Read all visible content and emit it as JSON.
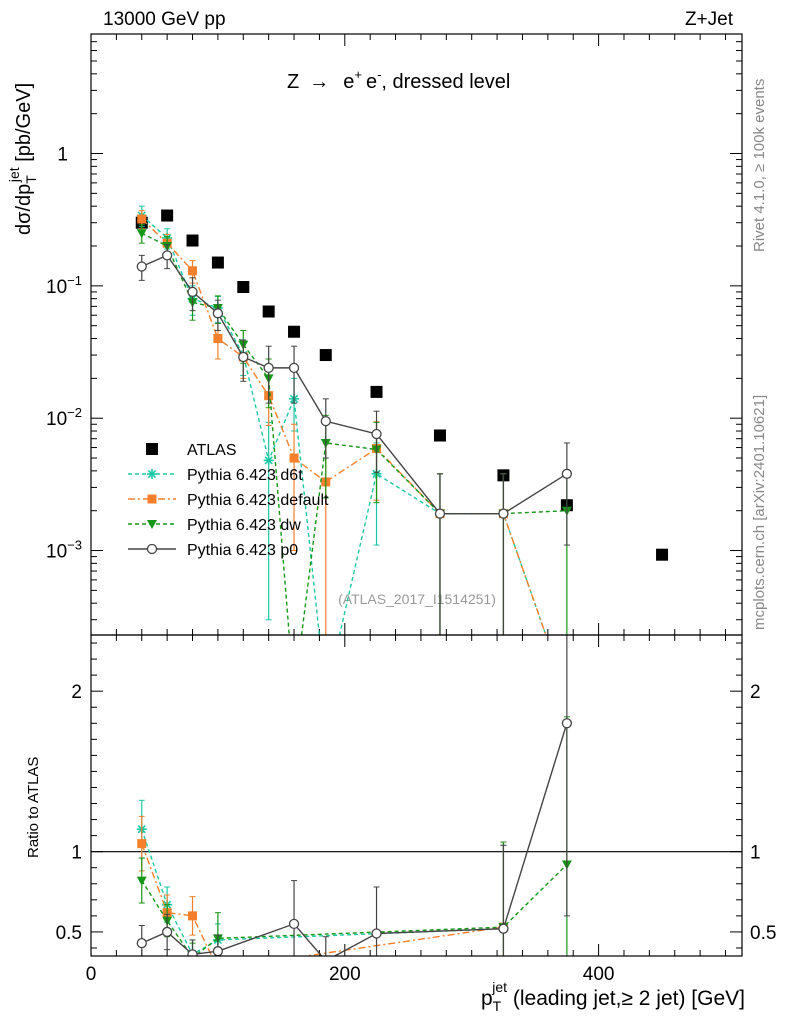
{
  "chart_data": {
    "type": "scatter",
    "header_left": "13000 GeV pp",
    "header_right": "Z+Jet",
    "process": {
      "pre": "Z",
      "arrow": "→",
      "lepton": "e",
      "post": ", dressed level"
    },
    "analysis_id": "(ATLAS_2017_I1514251)",
    "side_label_top": "Rivet 4.1.0, ≥ 100k events",
    "side_label_bottom": "mcplots.cern.ch [arXiv:2401.10621]",
    "ylabel_main": {
      "d": "dσ/dp",
      "sub": "T",
      "sup": "jet",
      "unit": " [pb/GeV]"
    },
    "ylabel_ratio": "Ratio to ATLAS",
    "xlabel": {
      "p": "p",
      "sub": "T",
      "sup": "jet",
      "rest": " (leading jet,≥ 2 jet) [GeV]"
    },
    "xlim": [
      0,
      513
    ],
    "ylim_main": [
      0.00023,
      8.0
    ],
    "ylim_ratio": [
      0.35,
      2.35
    ],
    "x_ticks": [
      "0",
      "200",
      "400"
    ],
    "y_ticks_main": [
      {
        "mantissa": "1",
        "exp": ""
      },
      {
        "mantissa": "10",
        "exp": "−1"
      },
      {
        "mantissa": "10",
        "exp": "−2"
      },
      {
        "mantissa": "10",
        "exp": "−3"
      }
    ],
    "y_ticks_ratio": [
      "2",
      "1",
      "0.5"
    ],
    "legend": [
      "ATLAS",
      "Pythia 6.423 d6t",
      "Pythia 6.423 default",
      "Pythia 6.423 dw",
      "Pythia 6.423 p0"
    ],
    "series": [
      {
        "name": "ATLAS",
        "color": "#000000",
        "x": [
          40,
          60,
          80,
          100,
          120,
          140,
          160,
          185,
          225,
          275,
          325,
          375,
          450
        ],
        "y": [
          0.3,
          0.34,
          0.22,
          0.15,
          0.098,
          0.064,
          0.045,
          0.03,
          0.0158,
          0.0074,
          0.0037,
          0.0022,
          0.00093
        ]
      },
      {
        "name": "Pythia 6.423 d6t",
        "color": "#1bc8a3",
        "x": [
          40,
          60,
          80,
          100,
          120,
          140,
          160,
          185,
          225,
          275,
          325,
          375
        ],
        "y": [
          0.34,
          0.23,
          0.08,
          0.068,
          0.03,
          0.0048,
          0.014,
          0.0,
          0.0038,
          0.0019,
          0.0019,
          0.0
        ],
        "err": [
          0.06,
          0.04,
          0.02,
          0.015,
          0.009,
          0.0045,
          0.006,
          0.0,
          0.0027,
          0.0019,
          0.0019,
          0.0
        ]
      },
      {
        "name": "Pythia 6.423 default",
        "color": "#f57f2a",
        "x": [
          40,
          60,
          80,
          100,
          120,
          140,
          160,
          185,
          225,
          275,
          325,
          375
        ],
        "y": [
          0.32,
          0.21,
          0.13,
          0.04,
          0.029,
          0.0148,
          0.005,
          0.0033,
          0.0059,
          0.0019,
          0.0019,
          0.0
        ],
        "err": [
          0.05,
          0.035,
          0.025,
          0.012,
          0.009,
          0.006,
          0.004,
          0.0031,
          0.0035,
          0.0019,
          0.0019,
          0.0
        ]
      },
      {
        "name": "Pythia 6.423 dw",
        "color": "#169616",
        "x": [
          40,
          60,
          80,
          100,
          120,
          140,
          160,
          185,
          225,
          275,
          325,
          375
        ],
        "y": [
          0.25,
          0.2,
          0.075,
          0.068,
          0.036,
          0.02,
          0.0,
          0.0065,
          0.0058,
          0.0019,
          0.0019,
          0.002
        ],
        "err": [
          0.04,
          0.035,
          0.02,
          0.016,
          0.01,
          0.008,
          0.0,
          0.004,
          0.0035,
          0.0019,
          0.0019,
          0.002
        ]
      },
      {
        "name": "Pythia 6.423 p0",
        "color": "#444444",
        "x": [
          40,
          60,
          80,
          100,
          120,
          140,
          160,
          185,
          225,
          275,
          325,
          375
        ],
        "y": [
          0.14,
          0.17,
          0.09,
          0.062,
          0.029,
          0.024,
          0.024,
          0.0095,
          0.0076,
          0.0019,
          0.0019,
          0.0038
        ],
        "err": [
          0.03,
          0.035,
          0.025,
          0.016,
          0.01,
          0.011,
          0.011,
          0.0045,
          0.0037,
          0.0019,
          0.0019,
          0.0027
        ]
      }
    ],
    "ratio_series": [
      {
        "name": "Pythia 6.423 d6t",
        "color": "#1bc8a3",
        "x": [
          40,
          60,
          80,
          100,
          325
        ],
        "y": [
          1.14,
          0.67,
          0.36,
          0.45,
          0.52
        ],
        "err": [
          0.18,
          0.11,
          0.09,
          0.1,
          0.52
        ]
      },
      {
        "name": "Pythia 6.423 default",
        "color": "#f57f2a",
        "x": [
          40,
          60,
          80,
          100,
          325
        ],
        "y": [
          1.05,
          0.62,
          0.6,
          0.27,
          0.53
        ],
        "err": [
          0.17,
          0.11,
          0.12,
          0.08,
          0.53
        ]
      },
      {
        "name": "Pythia 6.423 dw",
        "color": "#169616",
        "x": [
          40,
          60,
          80,
          100,
          325,
          375
        ],
        "y": [
          0.82,
          0.57,
          0.34,
          0.46,
          0.53,
          0.92
        ],
        "err": [
          0.14,
          0.1,
          0.09,
          0.16,
          0.53,
          0.92
        ]
      },
      {
        "name": "Pythia 6.423 p0",
        "color": "#444444",
        "x": [
          40,
          60,
          80,
          100,
          160,
          185,
          225,
          325,
          375
        ],
        "y": [
          0.43,
          0.5,
          0.36,
          0.38,
          0.55,
          0.32,
          0.49,
          0.52,
          1.8
        ],
        "err": [
          0.11,
          0.11,
          0.09,
          0.1,
          0.27,
          0.15,
          0.29,
          0.52,
          1.2
        ]
      }
    ]
  }
}
